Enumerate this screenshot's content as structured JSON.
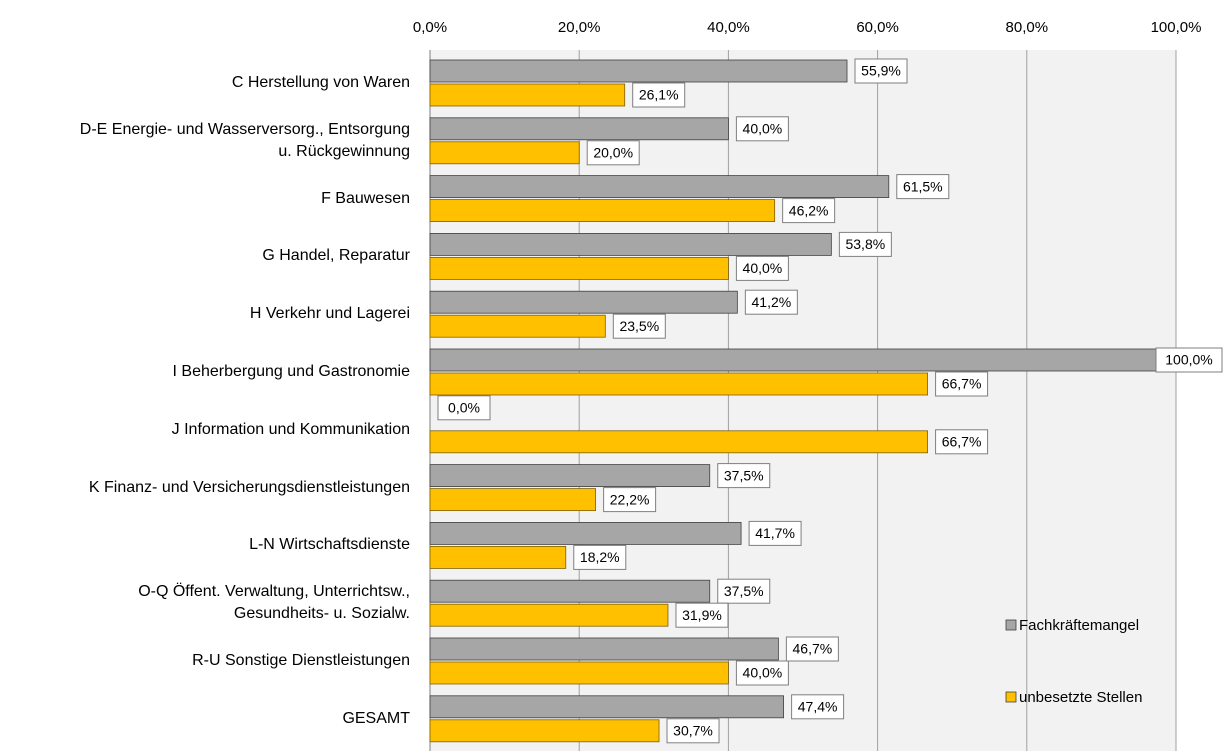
{
  "chart_data": {
    "type": "hbar",
    "categories": [
      "C Herstellung von Waren",
      "D-E Energie- und Wasserversorg., Entsorgung\nu. Rückgewinnung",
      "F Bauwesen",
      "G Handel, Reparatur",
      "H Verkehr und Lagerei",
      "I Beherbergung und Gastronomie",
      "J Information und Kommunikation",
      "K Finanz- und Versicherungsdienstleistungen",
      "L-N Wirtschaftsdienste",
      "O-Q Öffent. Verwaltung, Unterrichtsw.,\nGesundheits- u. Sozialw.",
      "R-U Sonstige Dienstleistungen",
      "GESAMT"
    ],
    "series": [
      {
        "name": "Fachkräftemangel",
        "color": "#a6a6a6",
        "values": [
          55.9,
          40.0,
          61.5,
          53.8,
          41.2,
          100.0,
          0.0,
          37.5,
          41.7,
          37.5,
          46.7,
          47.4
        ],
        "value_labels": [
          "55,9%",
          "40,0%",
          "61,5%",
          "53,8%",
          "41,2%",
          "100,0%",
          "0,0%",
          "37,5%",
          "41,7%",
          "37,5%",
          "46,7%",
          "47,4%"
        ]
      },
      {
        "name": "unbesetzte Stellen",
        "color": "#ffc000",
        "values": [
          26.1,
          20.0,
          46.2,
          40.0,
          23.5,
          66.7,
          66.7,
          22.2,
          18.2,
          31.9,
          40.0,
          30.7
        ],
        "value_labels": [
          "26,1%",
          "20,0%",
          "46,2%",
          "40,0%",
          "23,5%",
          "66,7%",
          "66,7%",
          "22,2%",
          "18,2%",
          "31,9%",
          "40,0%",
          "30,7%"
        ]
      }
    ],
    "xlim": [
      0,
      100
    ],
    "xticks": [
      {
        "value": 0,
        "label": "0,0%"
      },
      {
        "value": 20,
        "label": "20,0%"
      },
      {
        "value": 40,
        "label": "40,0%"
      },
      {
        "value": 60,
        "label": "60,0%"
      },
      {
        "value": 80,
        "label": "80,0%"
      },
      {
        "value": 100,
        "label": "100,0%"
      }
    ],
    "grid": true,
    "legend": "right"
  }
}
